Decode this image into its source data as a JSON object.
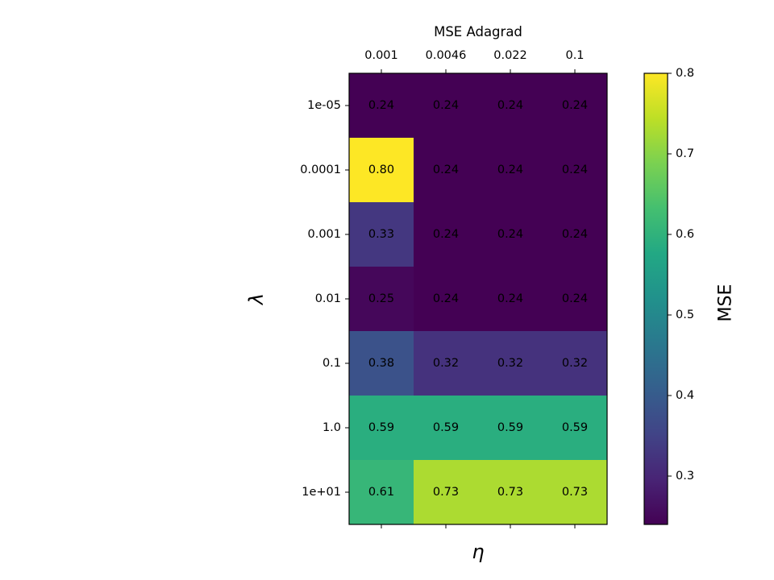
{
  "chart_data": {
    "type": "heatmap",
    "title": "MSE Adagrad",
    "xlabel": "η",
    "ylabel": "λ",
    "x_categories": [
      "0.001",
      "0.0046",
      "0.022",
      "0.1"
    ],
    "y_categories": [
      "1e-05",
      "0.0001",
      "0.001",
      "0.01",
      "0.1",
      "1.0",
      "1e+01"
    ],
    "values": [
      [
        0.24,
        0.24,
        0.24,
        0.24
      ],
      [
        0.8,
        0.24,
        0.24,
        0.24
      ],
      [
        0.33,
        0.24,
        0.24,
        0.24
      ],
      [
        0.25,
        0.24,
        0.24,
        0.24
      ],
      [
        0.38,
        0.32,
        0.32,
        0.32
      ],
      [
        0.59,
        0.59,
        0.59,
        0.59
      ],
      [
        0.61,
        0.73,
        0.73,
        0.73
      ]
    ],
    "cell_labels": [
      [
        "0.24",
        "0.24",
        "0.24",
        "0.24"
      ],
      [
        "0.80",
        "0.24",
        "0.24",
        "0.24"
      ],
      [
        "0.33",
        "0.24",
        "0.24",
        "0.24"
      ],
      [
        "0.25",
        "0.24",
        "0.24",
        "0.24"
      ],
      [
        "0.38",
        "0.32",
        "0.32",
        "0.32"
      ],
      [
        "0.59",
        "0.59",
        "0.59",
        "0.59"
      ],
      [
        "0.61",
        "0.73",
        "0.73",
        "0.73"
      ]
    ],
    "colormap": "viridis",
    "color_range": [
      0.24,
      0.8
    ],
    "colorbar": {
      "label": "MSE",
      "ticks": [
        0.3,
        0.4,
        0.5,
        0.6,
        0.7,
        0.8
      ],
      "tick_labels": [
        "0.3",
        "0.4",
        "0.5",
        "0.6",
        "0.7",
        "0.8"
      ]
    },
    "x_axis_position": "top",
    "grid": false
  }
}
